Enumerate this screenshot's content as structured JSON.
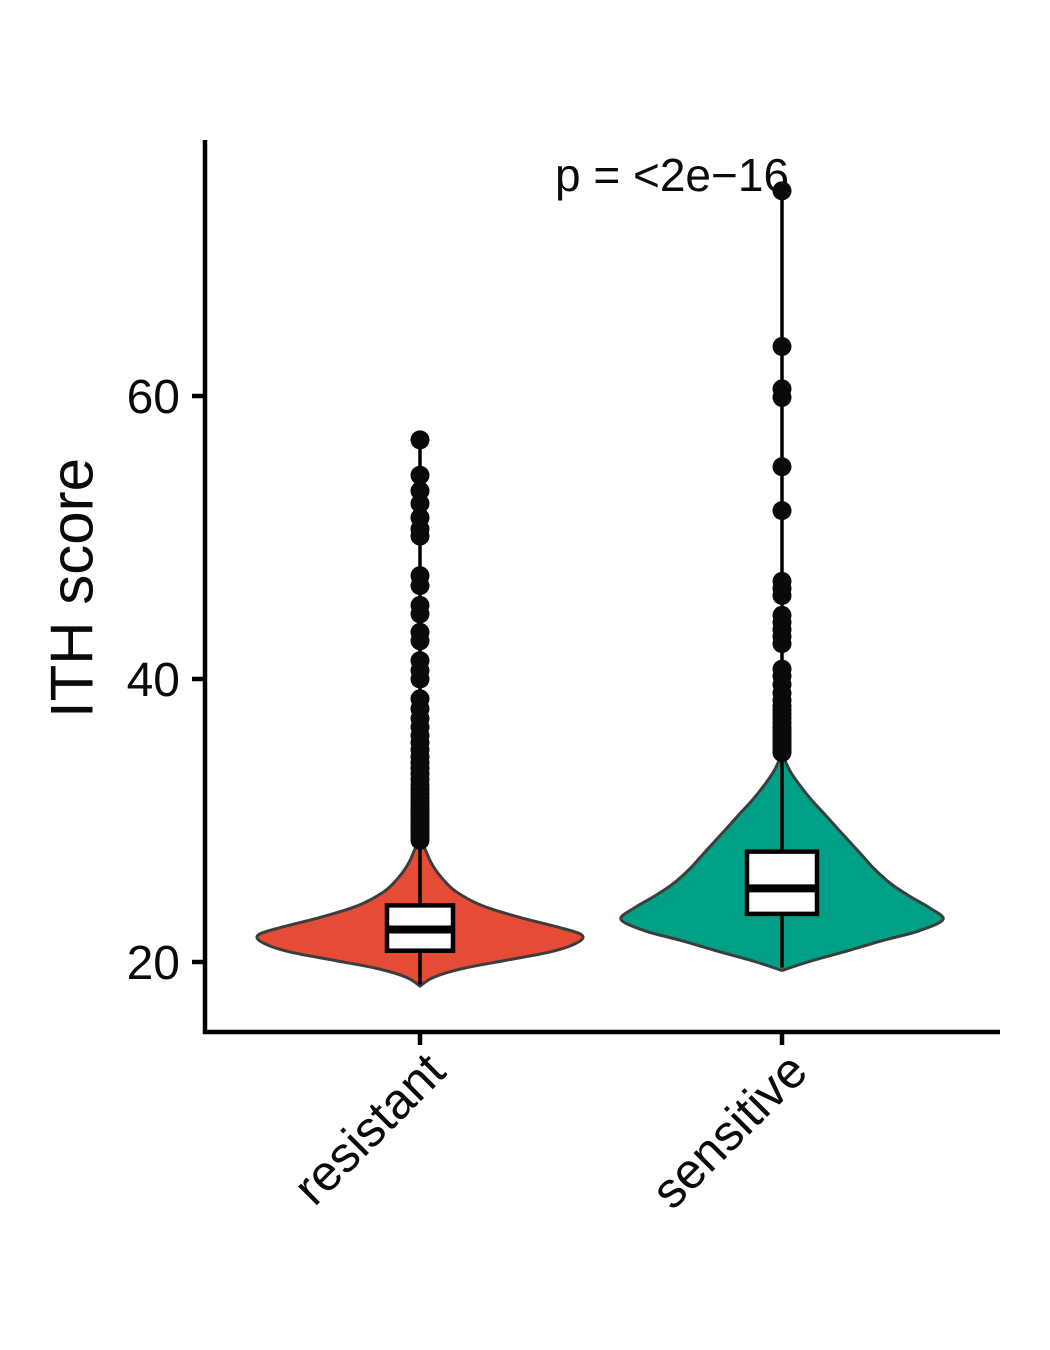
{
  "chart_data": {
    "type": "violin",
    "title": "",
    "xlabel": "",
    "ylabel": "ITH score",
    "annotation": "p = <2e−16",
    "yticks": [
      20,
      40,
      60
    ],
    "ylim": [
      15,
      78
    ],
    "grid": false,
    "legend": "none",
    "categories": [
      "resistant",
      "sensitive"
    ],
    "groups": [
      {
        "name": "resistant",
        "color": "#E64B35",
        "violin_profile": [
          [
            18.3,
            0.0
          ],
          [
            18.9,
            0.08
          ],
          [
            19.5,
            0.25
          ],
          [
            20.1,
            0.52
          ],
          [
            20.7,
            0.8
          ],
          [
            21.3,
            0.96
          ],
          [
            21.9,
            1.0
          ],
          [
            22.5,
            0.84
          ],
          [
            23.2,
            0.6
          ],
          [
            24.0,
            0.38
          ],
          [
            25.0,
            0.22
          ],
          [
            26.0,
            0.13
          ],
          [
            27.0,
            0.07
          ],
          [
            28.0,
            0.03
          ],
          [
            28.6,
            0.0
          ]
        ],
        "box": {
          "q1": 20.8,
          "median": 22.3,
          "q3": 24.0
        },
        "stem": [
          18.4,
          56.9
        ],
        "outliers": [
          28.6,
          28.8,
          29.0,
          29.2,
          29.4,
          29.6,
          29.8,
          30.0,
          30.2,
          30.4,
          30.6,
          30.8,
          31.0,
          31.3,
          31.6,
          31.9,
          32.2,
          32.5,
          32.9,
          33.3,
          33.7,
          34.1,
          34.5,
          35.0,
          35.5,
          36.0,
          36.6,
          37.2,
          37.9,
          38.6,
          40.0,
          40.6,
          41.3,
          42.7,
          43.3,
          44.6,
          45.2,
          46.6,
          47.3,
          50.1,
          50.6,
          51.4,
          52.4,
          53.3,
          54.4,
          56.9
        ]
      },
      {
        "name": "sensitive",
        "color": "#00A087",
        "violin_profile": [
          [
            19.4,
            0.0
          ],
          [
            20.0,
            0.16
          ],
          [
            20.7,
            0.38
          ],
          [
            21.5,
            0.62
          ],
          [
            22.2,
            0.85
          ],
          [
            23.0,
            1.0
          ],
          [
            23.8,
            0.92
          ],
          [
            24.6,
            0.8
          ],
          [
            25.5,
            0.68
          ],
          [
            26.5,
            0.58
          ],
          [
            27.5,
            0.5
          ],
          [
            28.5,
            0.42
          ],
          [
            29.5,
            0.34
          ],
          [
            30.5,
            0.26
          ],
          [
            31.5,
            0.18
          ],
          [
            32.5,
            0.11
          ],
          [
            33.5,
            0.05
          ],
          [
            34.7,
            0.0
          ]
        ],
        "box": {
          "q1": 23.4,
          "median": 25.2,
          "q3": 27.8
        },
        "stem": [
          19.6,
          74.5
        ],
        "outliers": [
          34.8,
          35.0,
          35.2,
          35.4,
          35.6,
          35.8,
          36.0,
          36.2,
          36.4,
          36.6,
          36.9,
          37.2,
          37.5,
          37.8,
          38.1,
          38.5,
          39.0,
          39.6,
          40.2,
          40.7,
          42.5,
          43.0,
          43.5,
          44.0,
          44.5,
          45.9,
          46.4,
          46.9,
          51.9,
          55.0,
          59.9,
          60.5,
          63.5,
          74.5
        ]
      }
    ]
  }
}
